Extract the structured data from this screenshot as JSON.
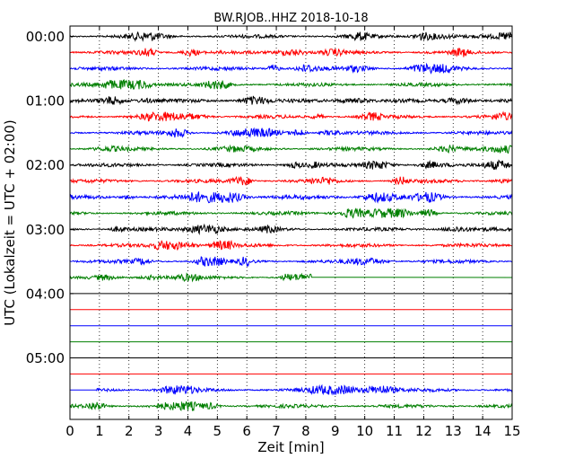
{
  "chart_data": {
    "type": "line",
    "title": "BW.RJOB..HHZ 2018-10-18",
    "xlabel": "Zeit  [min]",
    "ylabel": "UTC (Lokalzeit = UTC + 02:00)",
    "xlim": [
      0,
      15
    ],
    "x_ticks": [
      "0",
      "1",
      "2",
      "3",
      "4",
      "5",
      "6",
      "7",
      "8",
      "9",
      "10",
      "11",
      "12",
      "13",
      "14",
      "15"
    ],
    "y_tick_labels": [
      "00:00",
      "01:00",
      "02:00",
      "03:00",
      "04:00",
      "05:00"
    ],
    "grid": "vertical dotted",
    "trace_colors": [
      "#000000",
      "#ff0000",
      "#0000ff",
      "#007f00"
    ],
    "traces": [
      {
        "start": "00:00",
        "amplitude": 0.3,
        "data_end_min": 15
      },
      {
        "start": "00:15",
        "amplitude": 0.3,
        "data_end_min": 15
      },
      {
        "start": "00:30",
        "amplitude": 0.3,
        "data_end_min": 15
      },
      {
        "start": "00:45",
        "amplitude": 0.3,
        "data_end_min": 15
      },
      {
        "start": "01:00",
        "amplitude": 0.3,
        "data_end_min": 15
      },
      {
        "start": "01:15",
        "amplitude": 0.3,
        "data_end_min": 15
      },
      {
        "start": "01:30",
        "amplitude": 0.3,
        "data_end_min": 15
      },
      {
        "start": "01:45",
        "amplitude": 0.3,
        "data_end_min": 15
      },
      {
        "start": "02:00",
        "amplitude": 0.3,
        "data_end_min": 15
      },
      {
        "start": "02:15",
        "amplitude": 0.3,
        "data_end_min": 15
      },
      {
        "start": "02:30",
        "amplitude": 0.35,
        "data_end_min": 15
      },
      {
        "start": "02:45",
        "amplitude": 0.3,
        "data_end_min": 15
      },
      {
        "start": "03:00",
        "amplitude": 0.3,
        "data_end_min": 15
      },
      {
        "start": "03:15",
        "amplitude": 0.3,
        "data_end_min": 15
      },
      {
        "start": "03:30",
        "amplitude": 0.3,
        "data_end_min": 15
      },
      {
        "start": "03:45",
        "amplitude": 0.25,
        "data_end_min": 8.2
      },
      {
        "start": "04:00",
        "amplitude": 0,
        "data_end_min": 0
      },
      {
        "start": "04:15",
        "amplitude": 0,
        "data_end_min": 0
      },
      {
        "start": "04:30",
        "amplitude": 0,
        "data_end_min": 0
      },
      {
        "start": "04:45",
        "amplitude": 0,
        "data_end_min": 0
      },
      {
        "start": "05:00",
        "amplitude": 0,
        "data_end_min": 0
      },
      {
        "start": "05:15",
        "amplitude": 0,
        "data_end_min": 0
      },
      {
        "start": "05:30",
        "amplitude": 0.3,
        "data_start_min": 0.9,
        "data_end_min": 15
      },
      {
        "start": "05:45",
        "amplitude": 0.3,
        "data_end_min": 15
      }
    ]
  }
}
